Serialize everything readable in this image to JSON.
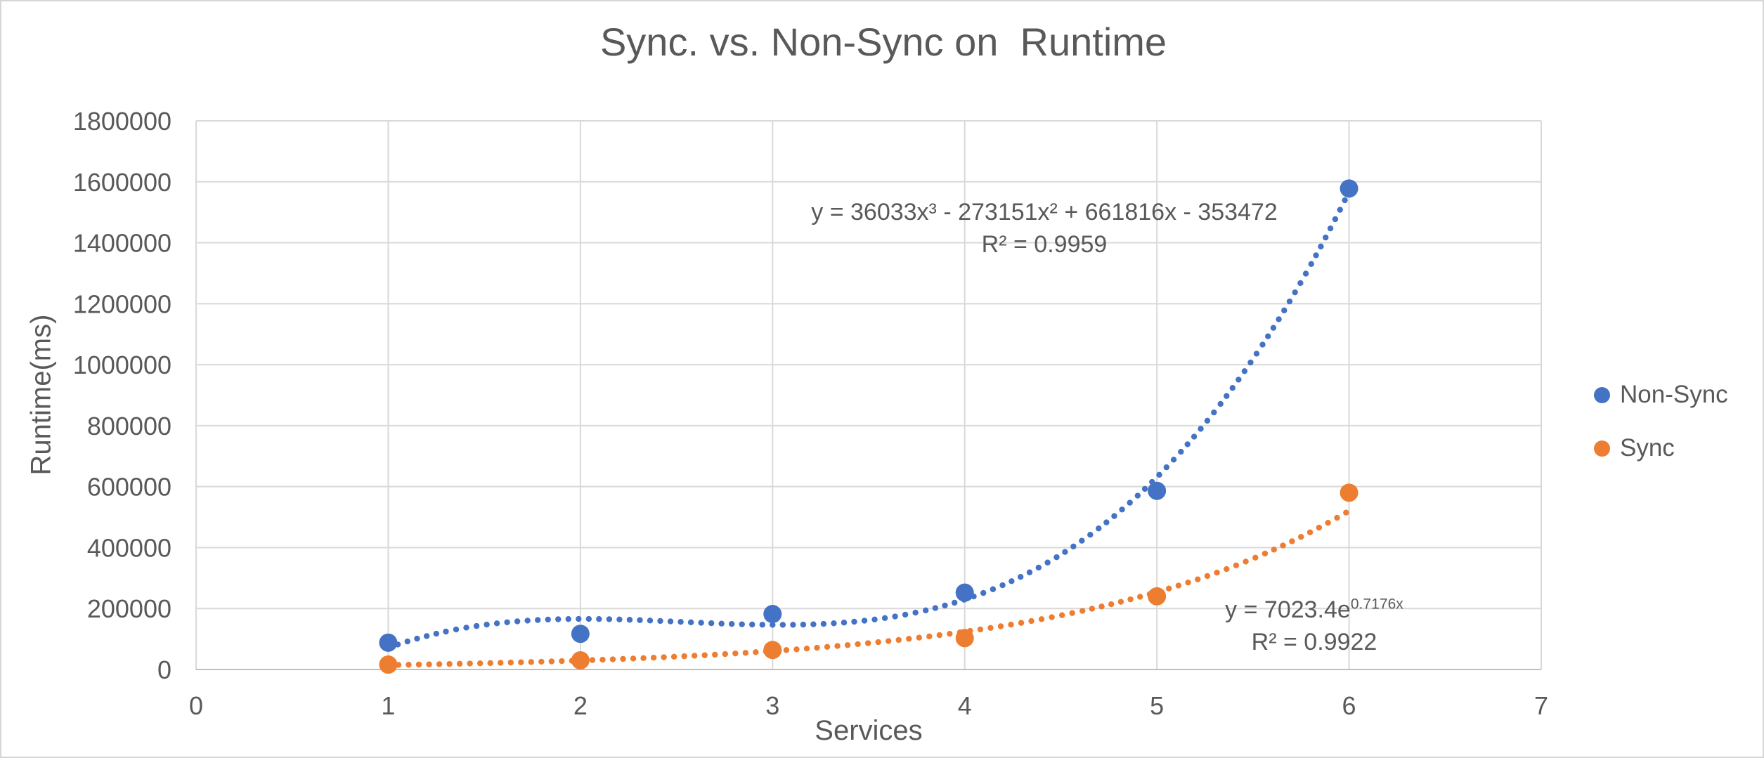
{
  "title": "Sync. vs. Non-Sync on  Runtime",
  "axes": {
    "x_label": "Services",
    "y_label": "Runtime(ms)"
  },
  "legend": [
    {
      "label": "Non-Sync"
    },
    {
      "label": "Sync"
    }
  ],
  "annotations": {
    "non_sync": {
      "line1": "y = 36033x³ - 273151x² + 661816x - 353472",
      "line2": "R² = 0.9959"
    },
    "sync": {
      "base": "y = 7023.4e",
      "exponent": "0.7176x",
      "line2": "R² = 0.9922"
    }
  },
  "colors": {
    "non_sync": "#4472C4",
    "sync": "#ED7D31",
    "grid": "#D9D9D9",
    "axis": "#BFBFBF",
    "text": "#595959"
  },
  "chart_data": {
    "type": "scatter",
    "title": "Sync. vs. Non-Sync on Runtime",
    "xlabel": "Services",
    "ylabel": "Runtime(ms)",
    "xlim": [
      0,
      7
    ],
    "ylim": [
      0,
      1800000
    ],
    "x_ticks": [
      0,
      1,
      2,
      3,
      4,
      5,
      6,
      7
    ],
    "y_ticks": [
      0,
      200000,
      400000,
      600000,
      800000,
      1000000,
      1200000,
      1400000,
      1600000,
      1800000
    ],
    "grid": true,
    "legend_position": "right",
    "x": [
      1,
      2,
      3,
      4,
      5,
      6
    ],
    "series": [
      {
        "name": "Non-Sync",
        "color": "#4472C4",
        "marker": "circle",
        "values": [
          88000,
          117000,
          182000,
          252000,
          586000,
          1578000
        ],
        "trendline": {
          "type": "polynomial",
          "order": 3,
          "coefficients": [
            36033,
            -273151,
            661816,
            -353472
          ],
          "equation": "y = 36033x³ - 273151x² + 661816x - 353472",
          "r_squared": 0.9959,
          "range": [
            1,
            6
          ],
          "style": "dotted"
        }
      },
      {
        "name": "Sync",
        "color": "#ED7D31",
        "marker": "circle",
        "values": [
          16000,
          30000,
          64000,
          103000,
          240000,
          580000
        ],
        "trendline": {
          "type": "exponential",
          "a": 7023.4,
          "b": 0.7176,
          "equation": "y = 7023.4e^(0.7176x)",
          "r_squared": 0.9922,
          "range": [
            1,
            6
          ],
          "style": "dotted"
        }
      }
    ]
  }
}
